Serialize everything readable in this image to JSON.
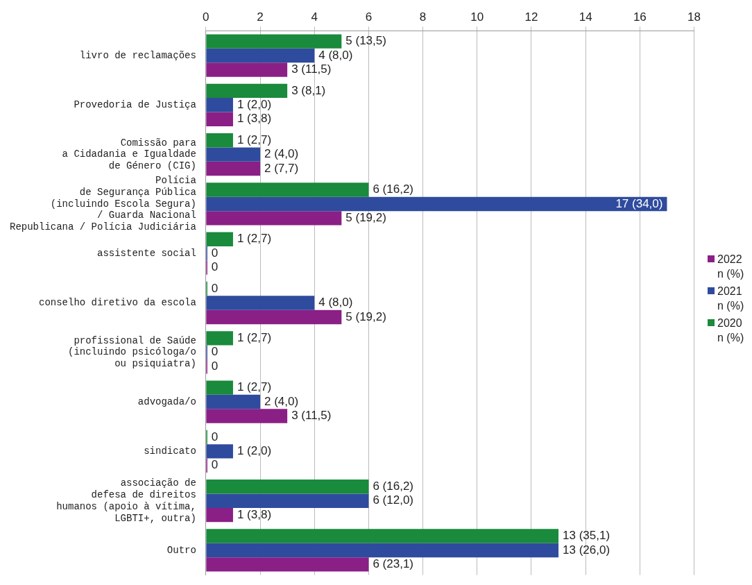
{
  "chart_data": {
    "type": "bar",
    "orientation": "horizontal",
    "categories": [
      "livro de reclamações",
      "Provedoria de Justiça",
      "Comissão para\na Cidadania e Igualdade\nde Género (CIG)",
      "Polícia\nde Segurança Pública\n(incluindo Escola Segura)\n/ Guarda Nacional\nRepublicana / Polícia Judiciária",
      "assistente social",
      "conselho diretivo da escola",
      "profissional de Saúde\n(incluindo psicóloga/o\nou psiquiatra)",
      "advogada/o",
      "sindicato",
      "associação de\ndefesa de direitos\nhumanos (apoio à vítima,\nLGBTI+, outra)",
      "Outro"
    ],
    "series": [
      {
        "name": "2020\nn (%)",
        "color": "#1a8a3c",
        "values": [
          5,
          3,
          1,
          6,
          1,
          0,
          1,
          1,
          0,
          6,
          13
        ],
        "value_labels": [
          "5 (13,5)",
          "3 (8,1)",
          "1 (2,7)",
          "6 (16,2)",
          "1 (2,7)",
          "0",
          "1 (2,7)",
          "1 (2,7)",
          "0",
          "6 (16,2)",
          "13 (35,1)"
        ]
      },
      {
        "name": "2021\nn (%)",
        "color": "#2f4b9e",
        "values": [
          4,
          1,
          2,
          17,
          0,
          4,
          0,
          2,
          1,
          6,
          13
        ],
        "value_labels": [
          "4 (8,0)",
          "1 (2,0)",
          "2 (4,0)",
          "17 (34,0)",
          "0",
          "4 (8,0)",
          "0",
          "2 (4,0)",
          "1 (2,0)",
          "6 (12,0)",
          "13 (26,0)"
        ]
      },
      {
        "name": "2022\nn (%)",
        "color": "#8a1f86",
        "values": [
          3,
          1,
          2,
          5,
          0,
          5,
          0,
          3,
          0,
          1,
          6
        ],
        "value_labels": [
          "3 (11,5)",
          "1 (3,8)",
          "2 (7,7)",
          "5 (19,2)",
          "0",
          "5 (19,2)",
          "0",
          "3 (11,5)",
          "0",
          "1 (3,8)",
          "6 (23,1)"
        ]
      }
    ],
    "xlim": [
      0,
      18
    ],
    "xticks": [
      0,
      2,
      4,
      6,
      8,
      10,
      12,
      14,
      16,
      18
    ],
    "grid": "x",
    "legend": "right"
  }
}
